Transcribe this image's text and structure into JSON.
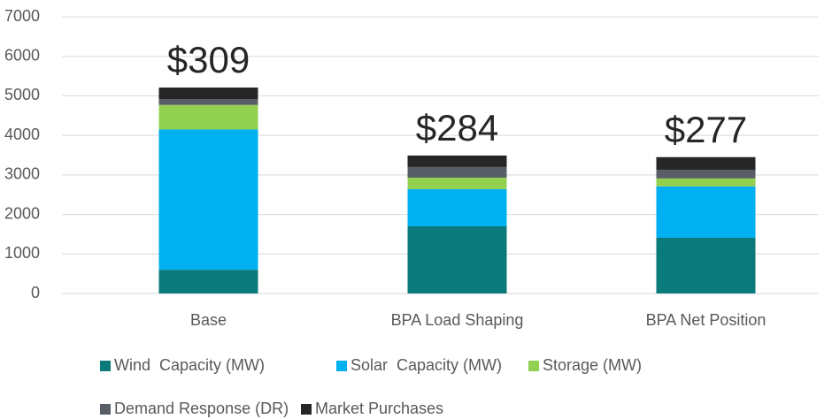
{
  "chart_data": {
    "type": "stacked_bar",
    "categories": [
      "Base",
      "BPA Load Shaping",
      "BPA Net Position"
    ],
    "series": [
      {
        "name": "Wind  Capacity (MW)",
        "color": "#0b7a7a",
        "values": [
          600,
          1700,
          1410
        ]
      },
      {
        "name": "Solar  Capacity (MW)",
        "color": "#00b0f0",
        "values": [
          3550,
          940,
          1300
        ]
      },
      {
        "name": "Storage (MW)",
        "color": "#92d050",
        "values": [
          620,
          290,
          200
        ]
      },
      {
        "name": "Demand Response (DR)",
        "color": "#595e66",
        "values": [
          150,
          270,
          220
        ]
      },
      {
        "name": "Market Purchases",
        "color": "#262626",
        "values": [
          290,
          290,
          320
        ]
      }
    ],
    "annotations": [
      "$309",
      "$284",
      "$277"
    ],
    "ylim": [
      0,
      7000
    ],
    "yticks": [
      0,
      1000,
      2000,
      3000,
      4000,
      5000,
      6000,
      7000
    ],
    "grid": true,
    "legend": "bottom"
  }
}
